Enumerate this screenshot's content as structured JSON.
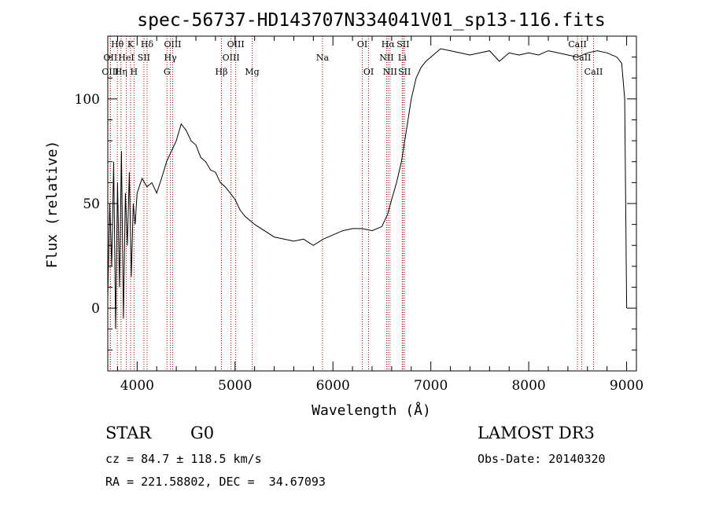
{
  "chart_data": {
    "type": "line",
    "title": "spec-56737-HD143707N334041V01_sp13-116.fits",
    "xlabel": "Wavelength (Å)",
    "ylabel": "Flux (relative)",
    "xlim": [
      3700,
      9100
    ],
    "ylim": [
      -30,
      130
    ],
    "xticks": [
      4000,
      5000,
      6000,
      7000,
      8000,
      9000
    ],
    "yticks": [
      0,
      50,
      100
    ],
    "grid": false,
    "series": [
      {
        "x": [
          3700,
          3720,
          3740,
          3760,
          3780,
          3800,
          3820,
          3840,
          3860,
          3880,
          3900,
          3920,
          3940,
          3960,
          3980,
          4000,
          4050,
          4100,
          4150,
          4200,
          4250,
          4300,
          4350,
          4400,
          4450,
          4500,
          4550,
          4600,
          4650,
          4700,
          4750,
          4800,
          4850,
          4900,
          4950,
          5000,
          5050,
          5100,
          5150,
          5200,
          5300,
          5400,
          5500,
          5600,
          5700,
          5800,
          5900,
          6000,
          6100,
          6200,
          6300,
          6400,
          6500,
          6560,
          6600,
          6650,
          6700,
          6750,
          6800,
          6850,
          6900,
          6950,
          7000,
          7050,
          7100,
          7200,
          7300,
          7400,
          7500,
          7600,
          7700,
          7800,
          7900,
          8000,
          8100,
          8200,
          8300,
          8400,
          8500,
          8600,
          8700,
          8800,
          8900,
          8950,
          8980,
          9000
        ],
        "y": [
          5,
          50,
          20,
          70,
          -10,
          60,
          10,
          75,
          -5,
          55,
          30,
          65,
          15,
          50,
          40,
          55,
          62,
          58,
          60,
          55,
          62,
          70,
          75,
          80,
          88,
          85,
          80,
          78,
          72,
          70,
          66,
          65,
          60,
          58,
          55,
          52,
          47,
          44,
          42,
          40,
          37,
          34,
          33,
          32,
          33,
          30,
          33,
          35,
          37,
          38,
          38,
          37,
          39,
          45,
          52,
          60,
          70,
          85,
          100,
          110,
          115,
          118,
          120,
          122,
          124,
          123,
          122,
          121,
          122,
          123,
          118,
          122,
          121,
          122,
          121,
          123,
          122,
          121,
          120,
          122,
          123,
          122,
          120,
          117,
          100,
          0
        ]
      }
    ],
    "spectral_lines": [
      {
        "label": "Hθ",
        "wavelength": 3798,
        "row": 1
      },
      {
        "label": "OII",
        "wavelength": 3727,
        "row": 2
      },
      {
        "label": "OIII",
        "wavelength": 3727,
        "row": 3
      },
      {
        "label": "K",
        "wavelength": 3933,
        "row": 1
      },
      {
        "label": "HeI",
        "wavelength": 3889,
        "row": 2
      },
      {
        "label": "Hη",
        "wavelength": 3835,
        "row": 3
      },
      {
        "label": "SII",
        "wavelength": 4069,
        "row": 2
      },
      {
        "label": "H",
        "wavelength": 3968,
        "row": 3
      },
      {
        "label": "Hδ",
        "wavelength": 4102,
        "row": 1
      },
      {
        "label": "OIII",
        "wavelength": 4363,
        "row": 1
      },
      {
        "label": "Hγ",
        "wavelength": 4340,
        "row": 2
      },
      {
        "label": "G",
        "wavelength": 4305,
        "row": 3
      },
      {
        "label": "Hβ",
        "wavelength": 4861,
        "row": 3
      },
      {
        "label": "OIII",
        "wavelength": 5007,
        "row": 1
      },
      {
        "label": "OIII",
        "wavelength": 4959,
        "row": 2
      },
      {
        "label": "Mg",
        "wavelength": 5175,
        "row": 3
      },
      {
        "label": "Na",
        "wavelength": 5893,
        "row": 2
      },
      {
        "label": "OI",
        "wavelength": 6300,
        "row": 1
      },
      {
        "label": "OI",
        "wavelength": 6364,
        "row": 3
      },
      {
        "label": "Hα",
        "wavelength": 6563,
        "row": 1
      },
      {
        "label": "NII",
        "wavelength": 6548,
        "row": 2
      },
      {
        "label": "NII",
        "wavelength": 6583,
        "row": 3
      },
      {
        "label": "SII",
        "wavelength": 6716,
        "row": 1
      },
      {
        "label": "Li",
        "wavelength": 6708,
        "row": 2
      },
      {
        "label": "SII",
        "wavelength": 6731,
        "row": 3
      },
      {
        "label": "CaII",
        "wavelength": 8498,
        "row": 1
      },
      {
        "label": "CaII",
        "wavelength": 8542,
        "row": 2
      },
      {
        "label": "CaII",
        "wavelength": 8662,
        "row": 3
      }
    ]
  },
  "footer": {
    "class_label": "STAR",
    "subclass": "G0",
    "survey": "LAMOST DR3",
    "cz": "cz = 84.7 ± 118.5 km/s",
    "obs_date": "Obs-Date: 20140320",
    "coords": "RA = 221.58802, DEC =  34.67093"
  }
}
